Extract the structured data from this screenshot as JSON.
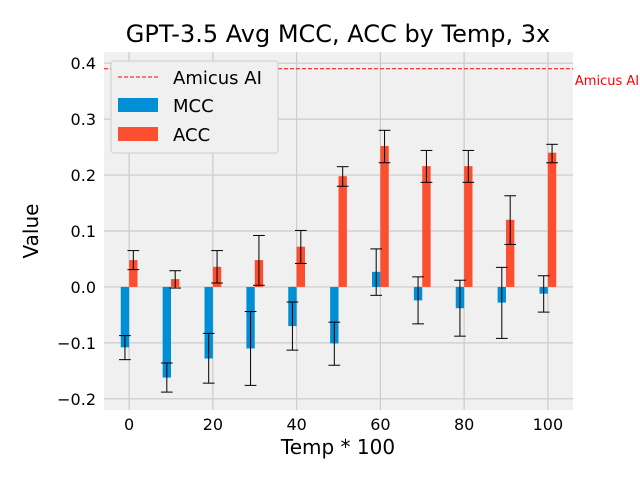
{
  "chart_data": {
    "type": "bar",
    "title": "GPT-3.5 Avg MCC, ACC by Temp, 3x",
    "xlabel": "Temp * 100",
    "ylabel": "Value",
    "x": [
      0,
      10,
      20,
      30,
      40,
      50,
      60,
      70,
      80,
      90,
      100
    ],
    "xticks": [
      "0",
      "20",
      "40",
      "60",
      "80",
      "100"
    ],
    "xlim": [
      -6,
      106
    ],
    "ylim": [
      -0.22,
      0.42
    ],
    "yticks": [
      {
        "v": -0.2,
        "label": "−0.2"
      },
      {
        "v": -0.1,
        "label": "−0.1"
      },
      {
        "v": 0.0,
        "label": "0.0"
      },
      {
        "v": 0.1,
        "label": "0.1"
      },
      {
        "v": 0.2,
        "label": "0.2"
      },
      {
        "v": 0.3,
        "label": "0.3"
      },
      {
        "v": 0.4,
        "label": "0.4"
      }
    ],
    "grid": true,
    "legend_position": "top-left",
    "series": [
      {
        "name": "MCC",
        "color": "#008fd5",
        "values": [
          -0.108,
          -0.162,
          -0.128,
          -0.11,
          -0.07,
          -0.101,
          0.027,
          -0.024,
          -0.038,
          -0.028,
          -0.012
        ],
        "err_low": [
          -0.13,
          -0.188,
          -0.172,
          -0.176,
          -0.113,
          -0.14,
          -0.015,
          -0.066,
          -0.088,
          -0.092,
          -0.045
        ],
        "err_high": [
          -0.087,
          -0.136,
          -0.083,
          -0.044,
          -0.027,
          -0.063,
          0.068,
          0.018,
          0.012,
          0.035,
          0.02
        ]
      },
      {
        "name": "ACC",
        "color": "#fc4f30",
        "values": [
          0.048,
          0.014,
          0.036,
          0.048,
          0.072,
          0.198,
          0.252,
          0.216,
          0.216,
          0.12,
          0.24
        ],
        "err_low": [
          0.031,
          -0.002,
          0.007,
          0.003,
          0.042,
          0.18,
          0.222,
          0.187,
          0.187,
          0.076,
          0.222
        ],
        "err_high": [
          0.065,
          0.029,
          0.065,
          0.092,
          0.101,
          0.215,
          0.28,
          0.244,
          0.244,
          0.163,
          0.255
        ]
      }
    ],
    "reference_line": {
      "name": "Amicus AI",
      "value": 0.39,
      "color": "#ff0000",
      "label": "Amicus AI"
    }
  }
}
